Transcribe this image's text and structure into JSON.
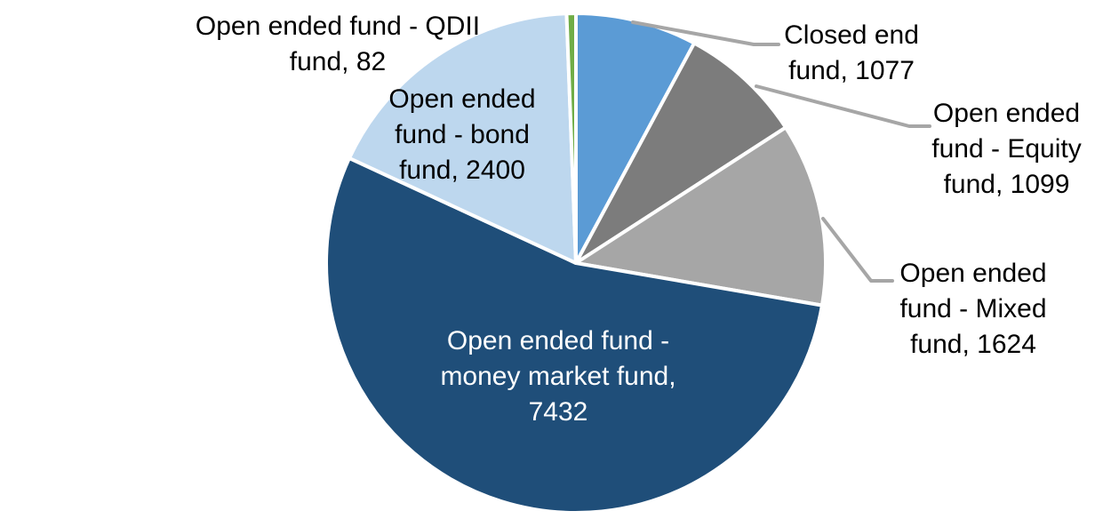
{
  "chart_data": {
    "type": "pie",
    "title": "",
    "total": 13714,
    "start_angle_deg": 0,
    "direction": "clockwise",
    "legend_position": "none",
    "colors": {
      "slice_border": "#FFFFFF",
      "leader_line": "#A6A6A6",
      "background": "#FFFFFF"
    },
    "segments": [
      {
        "id": "closed-end-fund",
        "label": "Closed end fund",
        "value": 1077,
        "color": "#5B9BD5",
        "label_text_color": "#000000",
        "label_lines": [
          "Closed end",
          "fund, 1077"
        ],
        "has_leader_line": true
      },
      {
        "id": "open-ended-equity-fund",
        "label": "Open ended fund - Equity fund",
        "value": 1099,
        "color": "#7C7C7C",
        "label_text_color": "#000000",
        "label_lines": [
          "Open ended",
          "fund - Equity",
          "fund, 1099"
        ],
        "has_leader_line": true
      },
      {
        "id": "open-ended-mixed-fund",
        "label": "Open ended fund - Mixed fund",
        "value": 1624,
        "color": "#A6A6A6",
        "label_text_color": "#000000",
        "label_lines": [
          "Open ended",
          "fund - Mixed",
          "fund, 1624"
        ],
        "has_leader_line": true
      },
      {
        "id": "open-ended-money-market-fund",
        "label": "Open ended fund - money market fund",
        "value": 7432,
        "color": "#1F4E79",
        "label_text_color": "#FFFFFF",
        "label_lines": [
          "Open ended fund -",
          "money market fund,",
          "7432"
        ],
        "has_leader_line": false
      },
      {
        "id": "open-ended-bond-fund",
        "label": "Open ended fund - bond fund",
        "value": 2400,
        "color": "#BDD7EE",
        "label_text_color": "#000000",
        "label_lines": [
          "Open ended",
          "fund - bond",
          "fund, 2400"
        ],
        "has_leader_line": false
      },
      {
        "id": "open-ended-qdii-fund",
        "label": "Open ended fund - QDII fund",
        "value": 82,
        "color": "#70AD47",
        "label_text_color": "#000000",
        "label_lines": [
          "Open ended fund - QDII",
          "fund, 82"
        ],
        "has_leader_line": false
      }
    ]
  }
}
